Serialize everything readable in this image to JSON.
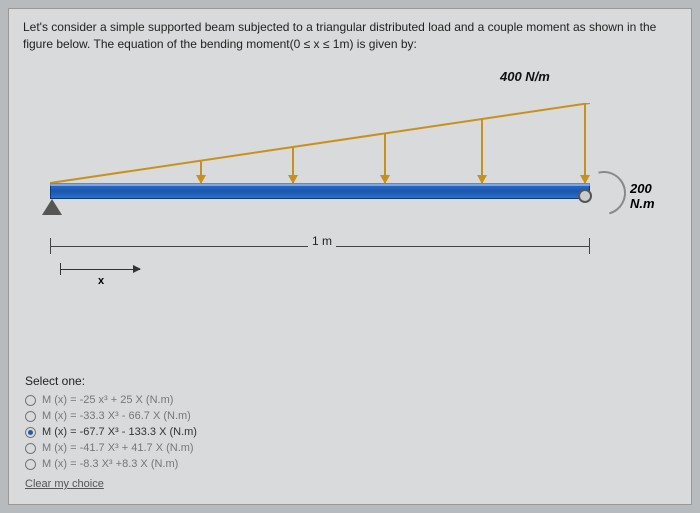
{
  "question": {
    "line1": "Let's consider a simple supported beam subjected to a triangular distributed load and a couple moment as shown in the",
    "line2": "figure below. The equation of the bending moment(0 ≤ x ≤ 1m) is given by:"
  },
  "figure": {
    "load_label": "400 N/m",
    "moment_label": "200 N.m",
    "span_label": "1 m",
    "x_label": "x",
    "beam_color": "#1a56b0",
    "arrow_color": "#c8911e",
    "arrows": [
      {
        "left_pct": 28,
        "h": 22
      },
      {
        "left_pct": 45,
        "h": 36
      },
      {
        "left_pct": 62,
        "h": 50
      },
      {
        "left_pct": 80,
        "h": 64
      },
      {
        "left_pct": 99,
        "h": 79
      }
    ]
  },
  "options": {
    "title": "Select one:",
    "items": [
      {
        "label": "M (x) = -25 x³ + 25 X (N.m)",
        "selected": false
      },
      {
        "label": "M (x) = -33.3 X³ - 66.7 X (N.m)",
        "selected": false
      },
      {
        "label": "M (x) = -67.7 X³ - 133.3 X (N.m)",
        "selected": true
      },
      {
        "label": "M (x) = -41.7 X³ + 41.7 X (N.m)",
        "selected": false
      },
      {
        "label": "M (x) = -8.3 X³ +8.3 X (N.m)",
        "selected": false
      }
    ],
    "clear": "Clear my choice"
  }
}
